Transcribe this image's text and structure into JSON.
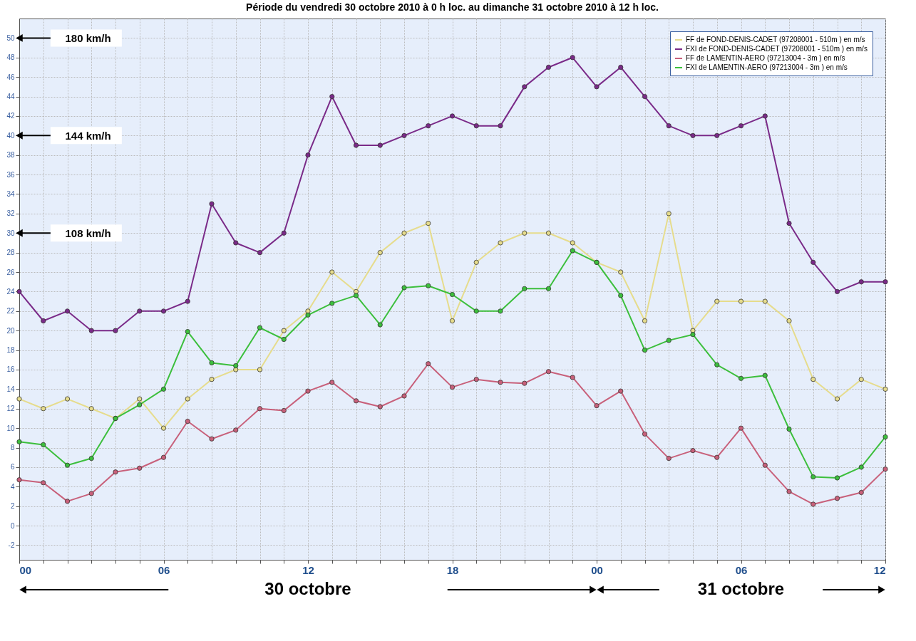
{
  "chart_data": {
    "type": "line",
    "title": "Période du vendredi 30 octobre 2010 à 0 h loc. au dimanche 31 octobre 2010 à 12 h loc.",
    "x": [
      0,
      1,
      2,
      3,
      4,
      5,
      6,
      7,
      8,
      9,
      10,
      11,
      12,
      13,
      14,
      15,
      16,
      17,
      18,
      19,
      20,
      21,
      22,
      23,
      24,
      25,
      26,
      27,
      28,
      29,
      30,
      31,
      32,
      33,
      34,
      35,
      36
    ],
    "xlim": [
      0,
      36
    ],
    "xticks": [
      {
        "value": 0,
        "label": "00"
      },
      {
        "value": 1,
        "label": null
      },
      {
        "value": 2,
        "label": null
      },
      {
        "value": 3,
        "label": null
      },
      {
        "value": 4,
        "label": null
      },
      {
        "value": 5,
        "label": null
      },
      {
        "value": 6,
        "label": "06"
      },
      {
        "value": 7,
        "label": null
      },
      {
        "value": 8,
        "label": null
      },
      {
        "value": 9,
        "label": null
      },
      {
        "value": 10,
        "label": null
      },
      {
        "value": 11,
        "label": null
      },
      {
        "value": 12,
        "label": "12"
      },
      {
        "value": 13,
        "label": null
      },
      {
        "value": 14,
        "label": null
      },
      {
        "value": 15,
        "label": null
      },
      {
        "value": 16,
        "label": null
      },
      {
        "value": 17,
        "label": null
      },
      {
        "value": 18,
        "label": "18"
      },
      {
        "value": 19,
        "label": null
      },
      {
        "value": 20,
        "label": null
      },
      {
        "value": 21,
        "label": null
      },
      {
        "value": 22,
        "label": null
      },
      {
        "value": 23,
        "label": null
      },
      {
        "value": 24,
        "label": "00"
      },
      {
        "value": 25,
        "label": null
      },
      {
        "value": 26,
        "label": null
      },
      {
        "value": 27,
        "label": null
      },
      {
        "value": 28,
        "label": null
      },
      {
        "value": 29,
        "label": null
      },
      {
        "value": 30,
        "label": "06"
      },
      {
        "value": 31,
        "label": null
      },
      {
        "value": 32,
        "label": null
      },
      {
        "value": 33,
        "label": null
      },
      {
        "value": 34,
        "label": null
      },
      {
        "value": 35,
        "label": null
      },
      {
        "value": 36,
        "label": "12"
      }
    ],
    "ylim": [
      -3.5,
      52
    ],
    "yticks": [
      -2,
      0,
      2,
      4,
      6,
      8,
      10,
      12,
      14,
      16,
      18,
      20,
      22,
      24,
      26,
      28,
      30,
      32,
      34,
      36,
      38,
      40,
      42,
      44,
      46,
      48,
      50
    ],
    "series": [
      {
        "name": "FF de FOND-DENIS-CADET (97208001 - 510m ) en m/s",
        "color": "#e6dc8c",
        "values": [
          13,
          12,
          13,
          12,
          11,
          13,
          10,
          13,
          15,
          16,
          16,
          20,
          22,
          26,
          24,
          28,
          30,
          31,
          21,
          27,
          29,
          30,
          30,
          29,
          27,
          26,
          21,
          32,
          20,
          23,
          23,
          23,
          21,
          15,
          13,
          15,
          14
        ]
      },
      {
        "name": "FXI de FOND-DENIS-CADET (97208001 - 510m ) en m/s",
        "color": "#7a2a88",
        "values": [
          24,
          21,
          22,
          20,
          20,
          22,
          22,
          23,
          33,
          29,
          28,
          30,
          38,
          44,
          39,
          39,
          40,
          41,
          42,
          41,
          41,
          45,
          47,
          48,
          45,
          47,
          44,
          41,
          40,
          40,
          41,
          42,
          31,
          27,
          24,
          25,
          25
        ]
      },
      {
        "name": "FF de LAMENTIN-AERO (97213004 - 3m ) en m/s",
        "color": "#c8607a",
        "values": [
          4.7,
          4.4,
          2.5,
          3.3,
          5.5,
          5.9,
          7,
          10.7,
          8.9,
          9.8,
          12,
          11.8,
          13.8,
          14.7,
          12.8,
          12.2,
          13.3,
          16.6,
          14.2,
          15,
          14.7,
          14.6,
          15.8,
          15.2,
          12.3,
          13.8,
          9.4,
          6.9,
          7.7,
          7,
          10,
          6.2,
          3.5,
          2.2,
          2.8,
          3.4,
          5.8
        ]
      },
      {
        "name": "FXI de LAMENTIN-AERO (97213004 - 3m ) en m/s",
        "color": "#3cbf3c",
        "values": [
          8.6,
          8.3,
          6.2,
          6.9,
          11,
          12.4,
          14,
          19.9,
          16.7,
          16.4,
          20.3,
          19.1,
          21.6,
          22.8,
          23.6,
          20.6,
          24.4,
          24.6,
          23.7,
          22,
          22,
          24.3,
          24.3,
          28.2,
          27,
          23.6,
          18,
          19,
          19.6,
          16.5,
          15.1,
          15.4,
          9.9,
          5,
          4.9,
          6,
          9.1
        ]
      }
    ],
    "annotations": [
      "30 octobre",
      "31 octobre"
    ],
    "y2lim": [
      -12.6,
      187.2
    ],
    "y2ticks": [
      {
        "value": 108,
        "label": "108 km/h"
      },
      {
        "value": 144,
        "label": "144 km/h"
      },
      {
        "value": 180,
        "label": "180 km/h"
      }
    ],
    "grid": true,
    "legend": "top right",
    "marker": "circle",
    "line_style": "solid"
  }
}
